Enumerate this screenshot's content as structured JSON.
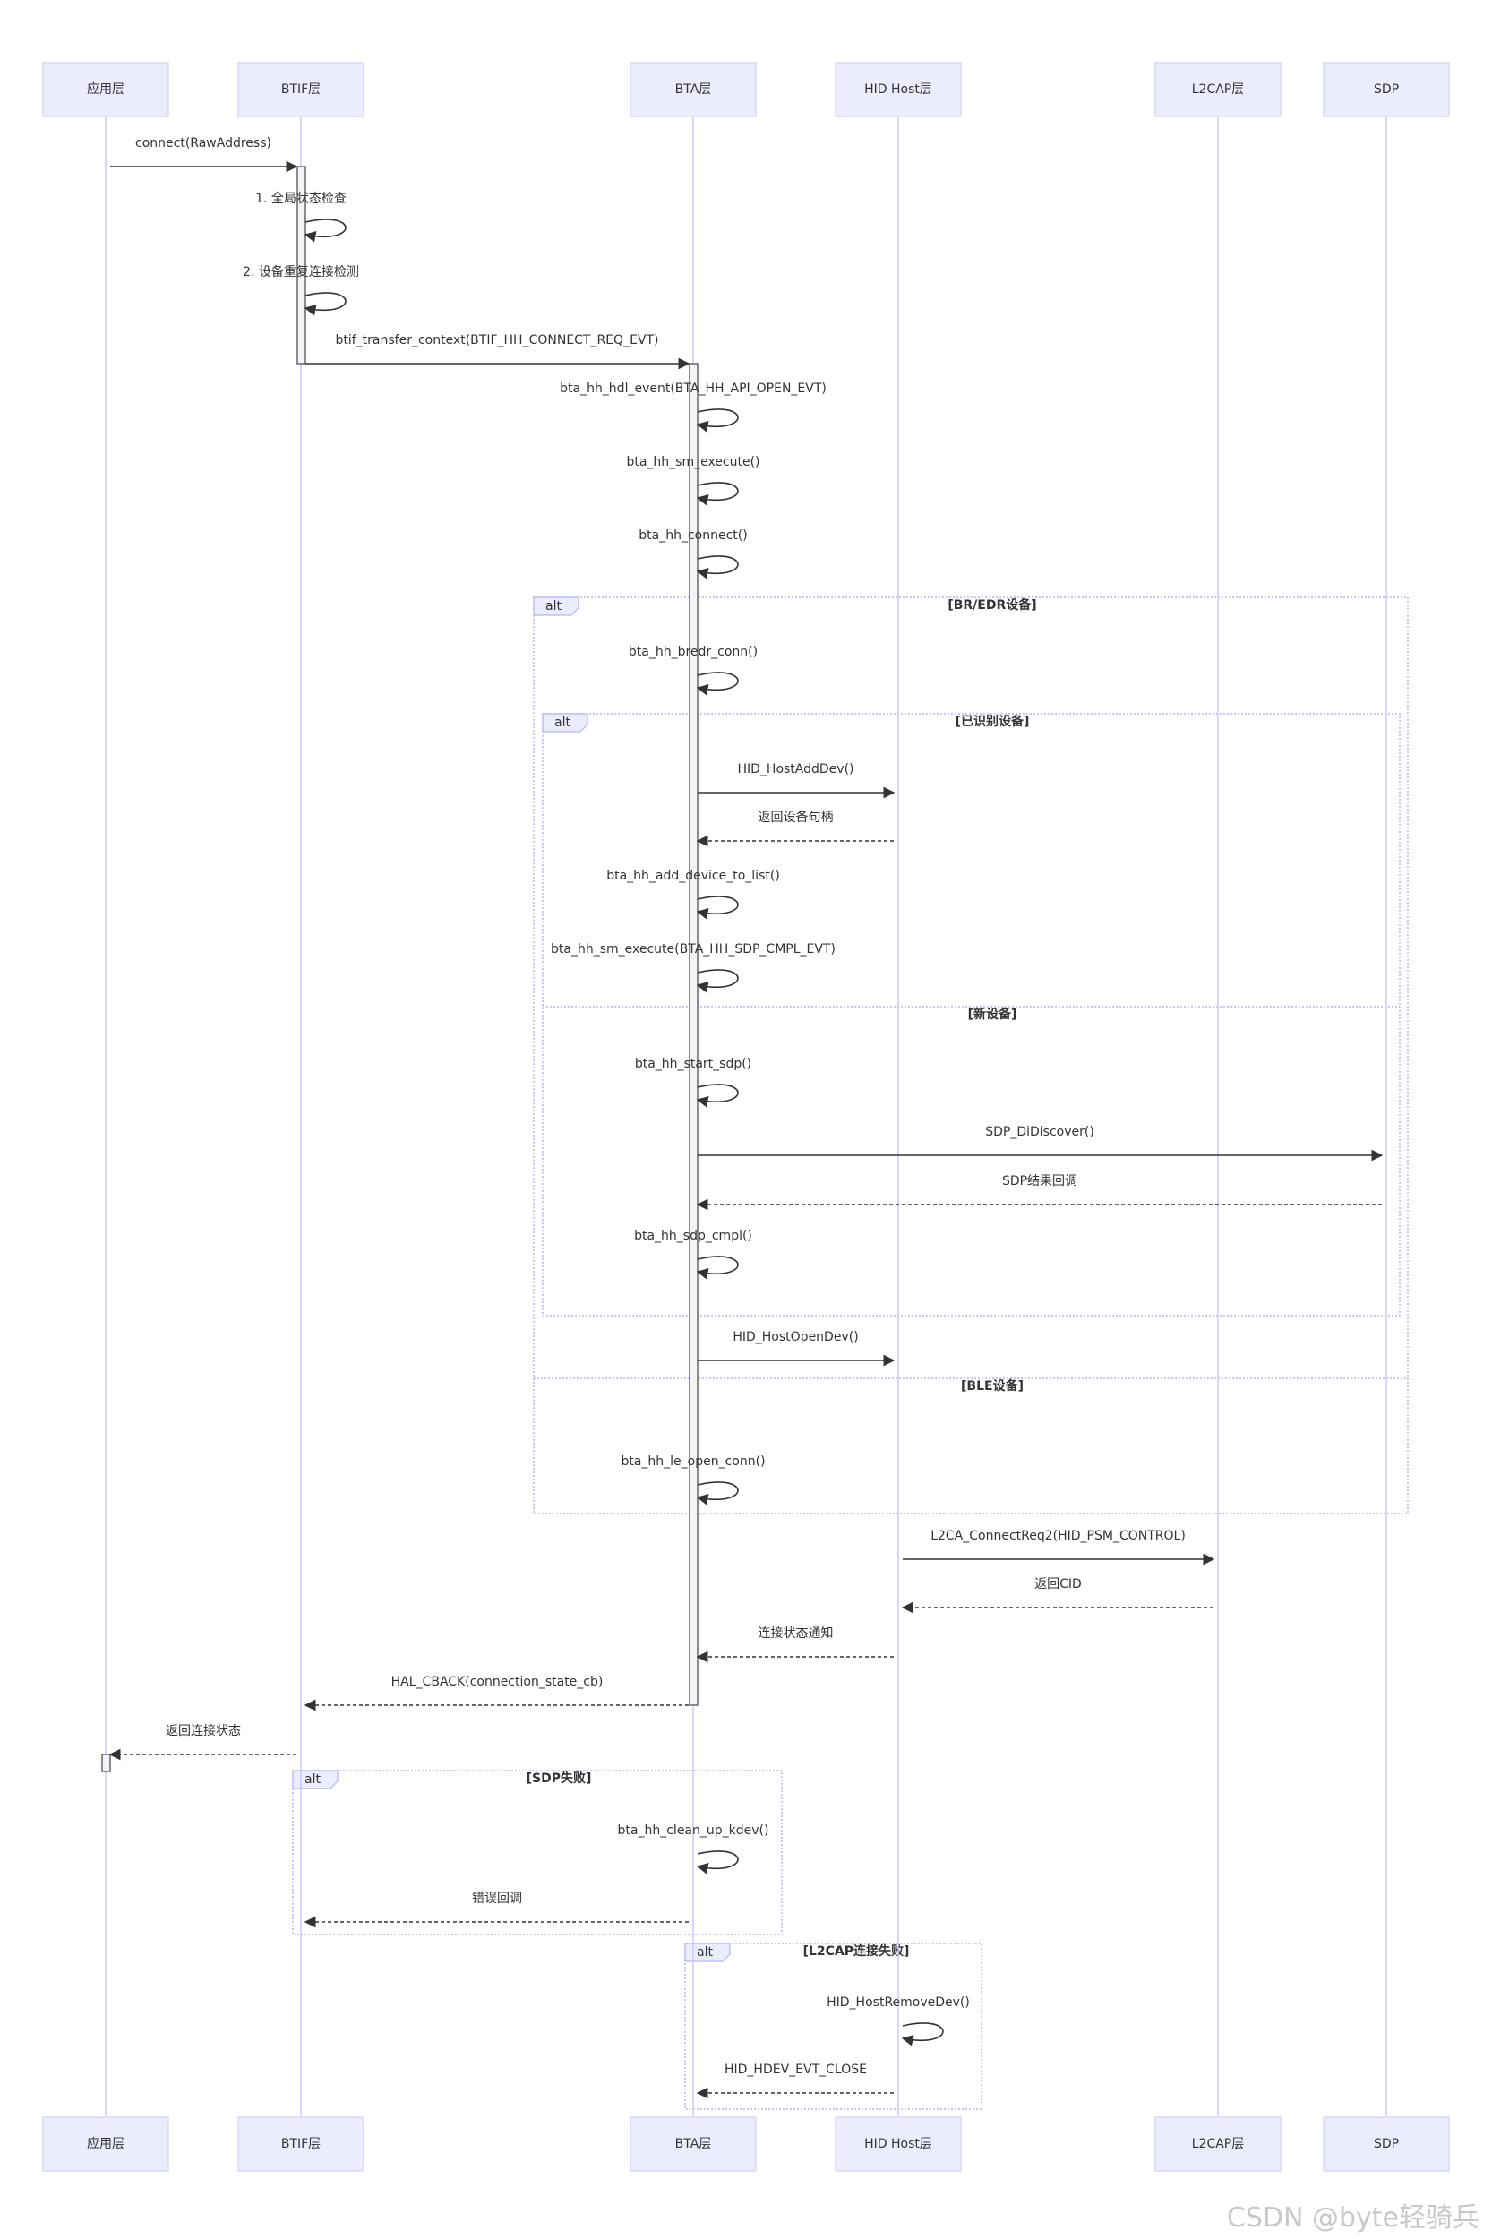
{
  "participants": [
    {
      "id": "app",
      "label": "应用层"
    },
    {
      "id": "btif",
      "label": "BTIF层"
    },
    {
      "id": "bta",
      "label": "BTA层"
    },
    {
      "id": "hid",
      "label": "HID Host层"
    },
    {
      "id": "l2cap",
      "label": "L2CAP层"
    },
    {
      "id": "sdp",
      "label": "SDP"
    }
  ],
  "messages": [
    {
      "from": "app",
      "to": "btif",
      "text": "connect(RawAddress)",
      "style": "solid"
    },
    {
      "from": "btif",
      "to": "btif",
      "text": "1. 全局状态检查",
      "style": "self"
    },
    {
      "from": "btif",
      "to": "btif",
      "text": "2. 设备重复连接检测",
      "style": "self"
    },
    {
      "from": "btif",
      "to": "bta",
      "text": "btif_transfer_context(BTIF_HH_CONNECT_REQ_EVT)",
      "style": "solid"
    },
    {
      "from": "bta",
      "to": "bta",
      "text": "bta_hh_hdl_event(BTA_HH_API_OPEN_EVT)",
      "style": "self"
    },
    {
      "from": "bta",
      "to": "bta",
      "text": "bta_hh_sm_execute()",
      "style": "self"
    },
    {
      "from": "bta",
      "to": "bta",
      "text": "bta_hh_connect()",
      "style": "self"
    },
    {
      "from": "bta",
      "to": "bta",
      "text": "bta_hh_bredr_conn()",
      "style": "self"
    },
    {
      "from": "bta",
      "to": "hid",
      "text": "HID_HostAddDev()",
      "style": "solid"
    },
    {
      "from": "hid",
      "to": "bta",
      "text": "返回设备句柄",
      "style": "dashed"
    },
    {
      "from": "bta",
      "to": "bta",
      "text": "bta_hh_add_device_to_list()",
      "style": "self"
    },
    {
      "from": "bta",
      "to": "bta",
      "text": "bta_hh_sm_execute(BTA_HH_SDP_CMPL_EVT)",
      "style": "self"
    },
    {
      "from": "bta",
      "to": "bta",
      "text": "bta_hh_start_sdp()",
      "style": "self"
    },
    {
      "from": "bta",
      "to": "sdp",
      "text": "SDP_DiDiscover()",
      "style": "solid"
    },
    {
      "from": "sdp",
      "to": "bta",
      "text": "SDP结果回调",
      "style": "dashed"
    },
    {
      "from": "bta",
      "to": "bta",
      "text": "bta_hh_sdp_cmpl()",
      "style": "self"
    },
    {
      "from": "bta",
      "to": "hid",
      "text": "HID_HostOpenDev()",
      "style": "solid"
    },
    {
      "from": "bta",
      "to": "bta",
      "text": "bta_hh_le_open_conn()",
      "style": "self"
    },
    {
      "from": "hid",
      "to": "l2cap",
      "text": "L2CA_ConnectReq2(HID_PSM_CONTROL)",
      "style": "solid"
    },
    {
      "from": "l2cap",
      "to": "hid",
      "text": "返回CID",
      "style": "dashed"
    },
    {
      "from": "hid",
      "to": "bta",
      "text": "连接状态通知",
      "style": "dashed"
    },
    {
      "from": "bta",
      "to": "btif",
      "text": "HAL_CBACK(connection_state_cb)",
      "style": "dashed"
    },
    {
      "from": "btif",
      "to": "app",
      "text": "返回连接状态",
      "style": "dashed"
    },
    {
      "from": "bta",
      "to": "bta",
      "text": "bta_hh_clean_up_kdev()",
      "style": "self"
    },
    {
      "from": "bta",
      "to": "btif",
      "text": "错误回调",
      "style": "dashed"
    },
    {
      "from": "hid",
      "to": "hid",
      "text": "HID_HostRemoveDev()",
      "style": "self"
    },
    {
      "from": "hid",
      "to": "bta",
      "text": "HID_HDEV_EVT_CLOSE",
      "style": "dashed"
    }
  ],
  "fragments": [
    {
      "type": "alt",
      "sections": [
        "[BR/EDR设备]",
        "[BLE设备]"
      ]
    },
    {
      "type": "alt",
      "sections": [
        "[已识别设备]",
        "[新设备]"
      ]
    },
    {
      "type": "alt",
      "sections": [
        "[SDP失败]"
      ]
    },
    {
      "type": "alt",
      "sections": [
        "[L2CAP连接失败]"
      ]
    }
  ],
  "watermark": "CSDN @byte轻骑兵"
}
